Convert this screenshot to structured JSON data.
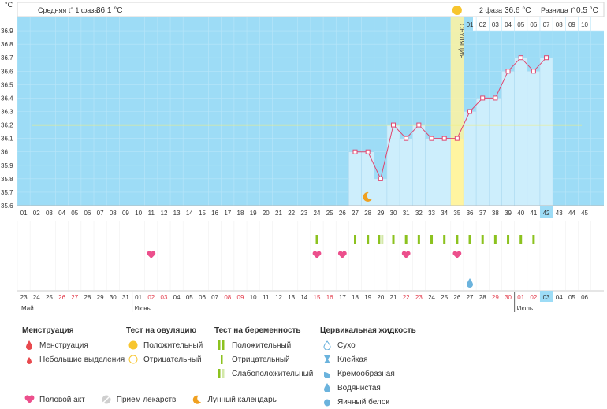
{
  "header": {
    "phase1_label": "Средняя t° 1 фаза",
    "phase1_value": "36.1 °C",
    "phase2_label": "2 фаза",
    "phase2_value": "36.6 °C",
    "diff_label": "Разница t°",
    "diff_value": "0.5 °C",
    "unit": "°C",
    "ovulation_label": "ОВУЛЯЦИЯ"
  },
  "colors": {
    "background": "#9ddcf6",
    "bars": "#cdeefc",
    "line": "#e0456e",
    "coverline": "#f2ef7a",
    "ovulation": "#fff3a0",
    "accent": "#f0b400"
  },
  "chart_data": {
    "type": "line",
    "title": "",
    "ylim": [
      35.6,
      37.0
    ],
    "y_ticks": [
      "35.6",
      "35.7",
      "35.8",
      "35.9",
      "36",
      "36.1",
      "36.2",
      "36.3",
      "36.4",
      "36.5",
      "36.6",
      "36.7",
      "36.8",
      "36.9"
    ],
    "x": [
      27,
      28,
      29,
      30,
      31,
      32,
      33,
      34,
      35,
      36,
      37,
      38,
      39,
      40,
      41,
      42
    ],
    "series": [
      {
        "values": [
          36.0,
          36.0,
          35.8,
          36.2,
          36.1,
          36.2,
          36.1,
          36.1,
          36.1,
          36.3,
          36.4,
          36.4,
          36.6,
          36.7,
          36.6,
          36.7
        ]
      }
    ],
    "coverline": 36.2,
    "ovulation_day": 35,
    "current_day": 42,
    "grid": true
  },
  "cycle_days": [
    "01",
    "02",
    "03",
    "04",
    "05",
    "06",
    "07",
    "08",
    "09",
    "10",
    "11",
    "12",
    "13",
    "14",
    "15",
    "16",
    "17",
    "18",
    "19",
    "20",
    "21",
    "22",
    "23",
    "24",
    "25",
    "26",
    "27",
    "28",
    "29",
    "30",
    "31",
    "32",
    "33",
    "34",
    "35",
    "36",
    "37",
    "38",
    "39",
    "40",
    "41",
    "42",
    "43",
    "44",
    "45"
  ],
  "top_days": [
    "01",
    "02",
    "03",
    "04",
    "05",
    "06",
    "07",
    "08",
    "09",
    "10"
  ],
  "calendar": {
    "dates": [
      "23",
      "24",
      "25",
      "26",
      "27",
      "28",
      "29",
      "30",
      "31",
      "01",
      "02",
      "03",
      "04",
      "05",
      "06",
      "07",
      "08",
      "09",
      "10",
      "11",
      "12",
      "13",
      "14",
      "15",
      "16",
      "17",
      "18",
      "19",
      "20",
      "21",
      "22",
      "23",
      "24",
      "25",
      "26",
      "27",
      "28",
      "29",
      "30",
      "01",
      "02",
      "03",
      "04",
      "05",
      "06"
    ],
    "red_indices": [
      3,
      4,
      10,
      11,
      16,
      17,
      23,
      24,
      30,
      31,
      37,
      38,
      39,
      40
    ],
    "months": [
      "Май",
      "Июнь",
      "Июль"
    ],
    "highlight_index": 41
  },
  "events": {
    "pregnancy_test_positive_days": [
      24,
      27,
      28,
      30,
      31,
      32,
      33,
      34,
      35,
      36,
      37,
      38,
      39,
      40,
      41
    ],
    "pregnancy_test_weak_days": [
      29
    ],
    "intercourse_days": [
      11,
      24,
      26,
      31,
      35
    ],
    "cervical_watery_days": [
      36
    ],
    "moon_days": [
      28
    ]
  },
  "legend": {
    "groups": [
      {
        "title": "Менструация",
        "items": [
          "Менструация",
          "Небольшие выделения"
        ]
      },
      {
        "title": "Тест на овуляцию",
        "items": [
          "Положительный",
          "Отрицательный"
        ]
      },
      {
        "title": "Тест на беременность",
        "items": [
          "Положительный",
          "Отрицательный",
          "Слабоположительный"
        ]
      },
      {
        "title": "Цервикальная жидкость",
        "items": [
          "Сухо",
          "Клейкая",
          "Кремообразная",
          "Водянистая",
          "Яичный белок"
        ]
      }
    ],
    "bottom": [
      "Половой акт",
      "Прием лекарств",
      "Лунный календарь"
    ]
  }
}
